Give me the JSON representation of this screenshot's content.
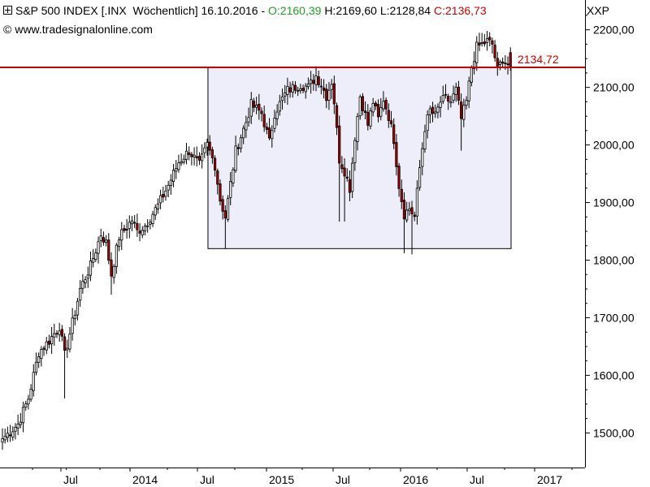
{
  "header": {
    "instrument": "S&P 500 INDEX [.INX",
    "period": "Wöchentlich] 16.10.2016 -",
    "open_label": "O:2160,39",
    "high_label": "H:2169,60",
    "low_label": "L:2128,84",
    "close_label": "C:2136,73",
    "copyright_symbol": "©",
    "source": "www.tradesignalonline.com",
    "ticker": "XXP"
  },
  "colors": {
    "up_candle": "#ffffff",
    "down_candle": "#aa0000",
    "candle_outline": "#000000",
    "resistance_line": "#d00000",
    "range_box_fill": "#eeeefa",
    "range_box_border": "#000000",
    "axis": "#000000",
    "open_text": "#22a022",
    "close_text": "#d00000"
  },
  "chart_data": {
    "type": "candlestick",
    "frequency": "weekly",
    "ylim": [
      1475,
      2230
    ],
    "y_ticks": [
      "1500,00",
      "1600,00",
      "1700,00",
      "1800,00",
      "1900,00",
      "2000,00",
      "2100,00",
      "2200,00"
    ],
    "x_ticks": [
      "Jul",
      "2014",
      "Jul",
      "2015",
      "Jul",
      "2016",
      "Jul",
      "2017"
    ],
    "resistance": {
      "value": 2134.72,
      "label": "2134,72"
    },
    "range_box": {
      "from": "2014-07",
      "to": "2016-10",
      "low": 1820,
      "high": 2134.72
    },
    "last_bar": {
      "date": "16.10.2016",
      "open": 2160.39,
      "high": 2169.6,
      "low": 2128.84,
      "close": 2136.73
    },
    "anchors": [
      [
        0,
        1490
      ],
      [
        6,
        1515
      ],
      [
        10,
        1560
      ],
      [
        14,
        1640
      ],
      [
        18,
        1660
      ],
      [
        22,
        1685
      ],
      [
        24,
        1635
      ],
      [
        28,
        1710
      ],
      [
        30,
        1750
      ],
      [
        34,
        1790
      ],
      [
        38,
        1845
      ],
      [
        40,
        1830
      ],
      [
        42,
        1775
      ],
      [
        45,
        1840
      ],
      [
        50,
        1870
      ],
      [
        52,
        1850
      ],
      [
        55,
        1860
      ],
      [
        60,
        1895
      ],
      [
        64,
        1930
      ],
      [
        68,
        1970
      ],
      [
        72,
        1990
      ],
      [
        76,
        1965
      ],
      [
        79,
        2000
      ],
      [
        82,
        1965
      ],
      [
        84,
        1905
      ],
      [
        86,
        1875
      ],
      [
        90,
        1990
      ],
      [
        94,
        2040
      ],
      [
        96,
        2070
      ],
      [
        100,
        2055
      ],
      [
        103,
        2005
      ],
      [
        105,
        2055
      ],
      [
        108,
        2080
      ],
      [
        110,
        2095
      ],
      [
        115,
        2105
      ],
      [
        118,
        2100
      ],
      [
        121,
        2120
      ],
      [
        123,
        2105
      ],
      [
        125,
        2085
      ],
      [
        127,
        2110
      ],
      [
        128,
        2075
      ],
      [
        130,
        1975
      ],
      [
        132,
        1955
      ],
      [
        134,
        1925
      ],
      [
        136,
        2015
      ],
      [
        138,
        2085
      ],
      [
        141,
        2035
      ],
      [
        143,
        2075
      ],
      [
        145,
        2045
      ],
      [
        147,
        2080
      ],
      [
        149,
        2050
      ],
      [
        151,
        2010
      ],
      [
        153,
        1930
      ],
      [
        155,
        1880
      ],
      [
        157,
        1890
      ],
      [
        159,
        1875
      ],
      [
        161,
        1960
      ],
      [
        163,
        2030
      ],
      [
        165,
        2060
      ],
      [
        167,
        2050
      ],
      [
        169,
        2075
      ],
      [
        171,
        2080
      ],
      [
        173,
        2075
      ],
      [
        175,
        2095
      ],
      [
        177,
        2045
      ],
      [
        179,
        2075
      ],
      [
        181,
        2135
      ],
      [
        183,
        2170
      ],
      [
        185,
        2175
      ],
      [
        187,
        2180
      ],
      [
        189,
        2175
      ],
      [
        191,
        2130
      ],
      [
        193,
        2150
      ],
      [
        195,
        2140
      ],
      [
        196,
        2136.73
      ]
    ]
  }
}
